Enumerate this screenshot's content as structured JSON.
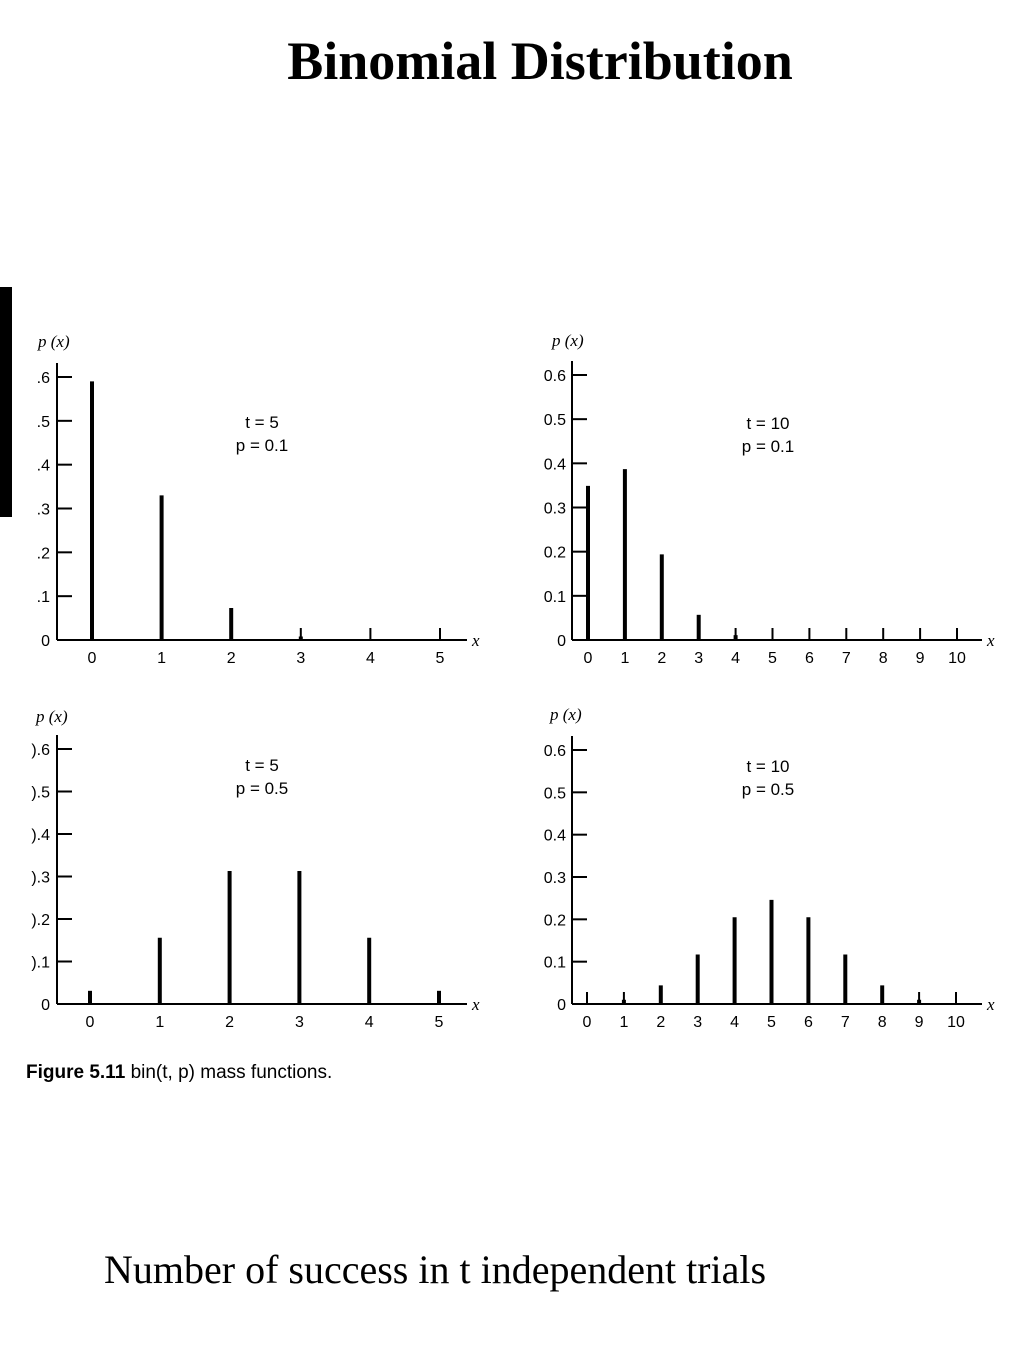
{
  "slide": {
    "title": "Binomial Distribution",
    "caption_number": "Figure 5.11",
    "caption_text": "bin(t, p) mass functions.",
    "bottom_text": "Number of success in t independent trials"
  },
  "chart_data": [
    {
      "type": "bar",
      "panel": "top-left",
      "ylabel": "p (x)",
      "xlabel": "x",
      "params": [
        "t = 5",
        "p = 0.1"
      ],
      "categories": [
        "0",
        "1",
        "2",
        "3",
        "4",
        "5"
      ],
      "values": [
        0.59,
        0.33,
        0.073,
        0.008,
        0.0005,
        1e-05
      ],
      "ylim": [
        0,
        0.6
      ],
      "ytick_labels": [
        "0",
        ".1",
        ".2",
        ".3",
        ".4",
        ".5",
        ".6"
      ]
    },
    {
      "type": "bar",
      "panel": "top-right",
      "ylabel": "p (x)",
      "xlabel": "x",
      "params": [
        "t = 10",
        "p = 0.1"
      ],
      "categories": [
        "0",
        "1",
        "2",
        "3",
        "4",
        "5",
        "6",
        "7",
        "8",
        "9",
        "10"
      ],
      "values": [
        0.349,
        0.387,
        0.194,
        0.057,
        0.011,
        0.0015,
        0.0001,
        0.0,
        0.0,
        0.0,
        0.0
      ],
      "ylim": [
        0,
        0.6
      ],
      "ytick_labels": [
        "0",
        "0.1",
        "0.2",
        "0.3",
        "0.4",
        "0.5",
        "0.6"
      ]
    },
    {
      "type": "bar",
      "panel": "bottom-left",
      "ylabel": "p (x)",
      "xlabel": "x",
      "params": [
        "t = 5",
        "p = 0.5"
      ],
      "categories": [
        "0",
        "1",
        "2",
        "3",
        "4",
        "5"
      ],
      "values": [
        0.031,
        0.156,
        0.313,
        0.313,
        0.156,
        0.031
      ],
      "ylim": [
        0,
        0.6
      ],
      "ytick_labels": [
        "0",
        ").1",
        ").2",
        ").3",
        ").4",
        ").5",
        ").6"
      ]
    },
    {
      "type": "bar",
      "panel": "bottom-right",
      "ylabel": "p (x)",
      "xlabel": "x",
      "params": [
        "t = 10",
        "p = 0.5"
      ],
      "categories": [
        "0",
        "1",
        "2",
        "3",
        "4",
        "5",
        "6",
        "7",
        "8",
        "9",
        "10"
      ],
      "values": [
        0.001,
        0.01,
        0.044,
        0.117,
        0.205,
        0.246,
        0.205,
        0.117,
        0.044,
        0.01,
        0.001
      ],
      "ylim": [
        0,
        0.6
      ],
      "ytick_labels": [
        "0",
        "0.1",
        "0.2",
        "0.3",
        "0.4",
        "0.5",
        "0.6"
      ]
    }
  ]
}
